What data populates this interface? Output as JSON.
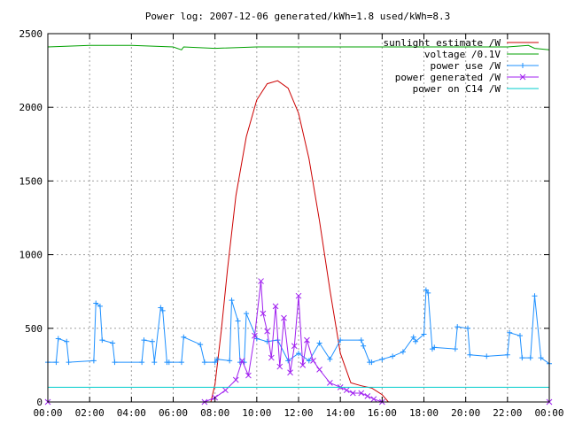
{
  "chart_data": {
    "type": "line",
    "title": "Power log: 2007-12-06 generated/kWh=1.8 used/kWh=8.3",
    "xlabel": "",
    "ylabel": "",
    "xlim": [
      0,
      24
    ],
    "ylim": [
      0,
      2500
    ],
    "grid": true,
    "legend_position": "top-right",
    "x_ticks": [
      "00:00",
      "02:00",
      "04:00",
      "06:00",
      "08:00",
      "10:00",
      "12:00",
      "14:00",
      "16:00",
      "18:00",
      "20:00",
      "22:00",
      "00:00"
    ],
    "y_ticks": [
      "0",
      "500",
      "1000",
      "1500",
      "2000",
      "2500"
    ],
    "y_tick_values": [
      0,
      500,
      1000,
      1500,
      2000,
      2500
    ],
    "series": [
      {
        "name": "sunlight estimate /W",
        "color": "#cc0000",
        "style": "line",
        "x": [
          0,
          7.8,
          8.0,
          8.3,
          8.6,
          9.0,
          9.5,
          10.0,
          10.5,
          11.0,
          11.5,
          12.0,
          12.5,
          13.0,
          13.5,
          14.0,
          14.5,
          15.0,
          15.5,
          16.0,
          16.3,
          24
        ],
        "y": [
          0,
          0,
          120,
          480,
          900,
          1400,
          1800,
          2050,
          2160,
          2180,
          2130,
          1960,
          1650,
          1230,
          760,
          330,
          130,
          110,
          95,
          50,
          0,
          0
        ]
      },
      {
        "name": "voltage /0.1V",
        "color": "#00a000",
        "style": "line",
        "x": [
          0,
          2,
          4,
          6,
          6.4,
          6.5,
          8,
          10,
          12,
          14,
          16,
          18,
          20,
          22,
          23.0,
          23.3,
          24
        ],
        "y": [
          2410,
          2420,
          2420,
          2410,
          2390,
          2410,
          2400,
          2410,
          2410,
          2410,
          2410,
          2410,
          2410,
          2410,
          2420,
          2400,
          2390
        ]
      },
      {
        "name": "power use /W",
        "color": "#1e90ff",
        "style": "line-plus",
        "x": [
          0,
          0.4,
          0.5,
          0.9,
          1.0,
          2.2,
          2.3,
          2.5,
          2.6,
          3.1,
          3.2,
          4.5,
          4.6,
          5.0,
          5.1,
          5.4,
          5.5,
          5.7,
          5.8,
          6.4,
          6.5,
          7.3,
          7.5,
          8.0,
          8.1,
          8.7,
          8.8,
          9.1,
          9.2,
          9.4,
          9.5,
          10.0,
          10.5,
          11.0,
          11.5,
          12.0,
          12.5,
          13.0,
          13.5,
          14.0,
          15.0,
          15.1,
          15.4,
          15.5,
          16.0,
          16.5,
          17.0,
          17.5,
          17.6,
          18.0,
          18.1,
          18.2,
          18.4,
          18.5,
          19.5,
          19.6,
          20.1,
          20.2,
          21.0,
          22.0,
          22.1,
          22.6,
          22.7,
          23.1,
          23.3,
          23.6,
          24.0
        ],
        "y": [
          270,
          270,
          430,
          410,
          270,
          280,
          670,
          650,
          420,
          400,
          270,
          270,
          420,
          410,
          270,
          640,
          620,
          270,
          270,
          270,
          440,
          390,
          270,
          270,
          290,
          280,
          690,
          550,
          270,
          270,
          600,
          430,
          410,
          420,
          280,
          330,
          280,
          400,
          290,
          420,
          420,
          380,
          270,
          270,
          290,
          310,
          340,
          440,
          410,
          460,
          760,
          740,
          360,
          370,
          360,
          510,
          500,
          320,
          310,
          320,
          470,
          450,
          300,
          300,
          720,
          300,
          260
        ]
      },
      {
        "name": "power generated /W",
        "color": "#a020f0",
        "style": "line-cross",
        "x": [
          0,
          7.5,
          8.0,
          8.5,
          9.0,
          9.3,
          9.6,
          9.9,
          10.2,
          10.3,
          10.5,
          10.7,
          10.9,
          11.1,
          11.3,
          11.6,
          11.8,
          12.0,
          12.2,
          12.4,
          12.7,
          13.0,
          13.5,
          14.0,
          14.3,
          14.6,
          15.0,
          15.3,
          15.6,
          16.0,
          24.0
        ],
        "y": [
          0,
          0,
          30,
          80,
          150,
          280,
          180,
          450,
          820,
          600,
          480,
          300,
          650,
          240,
          570,
          200,
          380,
          720,
          250,
          420,
          280,
          220,
          130,
          100,
          80,
          60,
          60,
          40,
          20,
          0,
          0
        ]
      },
      {
        "name": "power on C14 /W",
        "color": "#00cccc",
        "style": "line",
        "x": [
          0,
          6,
          12,
          18,
          24
        ],
        "y": [
          100,
          100,
          100,
          100,
          100
        ]
      }
    ]
  }
}
